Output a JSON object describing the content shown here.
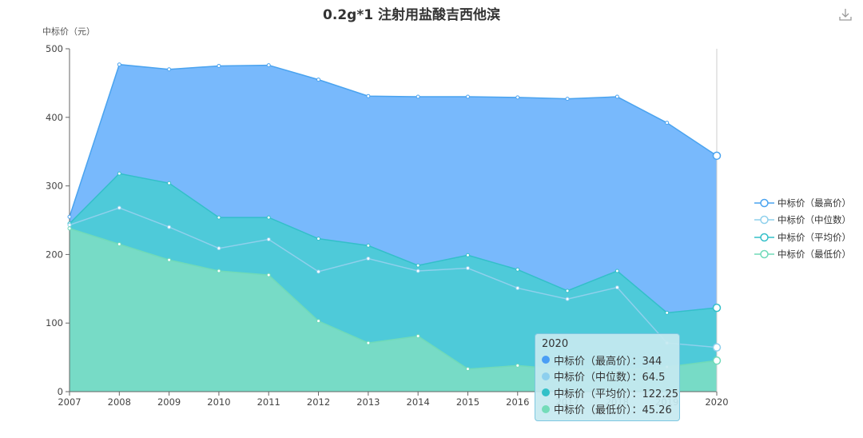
{
  "title": "0.2g*1 注射用盐酸吉西他滨",
  "icons": {
    "download": "download-icon"
  },
  "chart_data": {
    "type": "area",
    "title": "0.2g*1 注射用盐酸吉西他滨",
    "ylabel": "中标价（元）",
    "ylim": [
      0,
      500
    ],
    "yticks": [
      0,
      100,
      200,
      300,
      400,
      500
    ],
    "categories": [
      "2007",
      "2008",
      "2009",
      "2010",
      "2011",
      "2012",
      "2013",
      "2014",
      "2015",
      "2016",
      "2017",
      "2018",
      "2019",
      "2020"
    ],
    "series": [
      {
        "name": "中标价（最高价）",
        "color": "#4aa3ef",
        "fill": "#78b9fc",
        "values": [
          255,
          477,
          470,
          475,
          476,
          455,
          431,
          430,
          430,
          429,
          427,
          430,
          392,
          344
        ]
      },
      {
        "name": "中标价（中位数）",
        "color": "#8fd0ec",
        "fill": "#8fd0ec",
        "values": [
          243,
          268,
          240,
          209,
          222,
          175,
          194,
          176,
          180,
          151,
          135,
          152,
          71,
          64.5
        ]
      },
      {
        "name": "中标价（平均价）",
        "color": "#33bfc9",
        "fill": "#4ecad9",
        "values": [
          245,
          318,
          304,
          254,
          254,
          223,
          213,
          184,
          199,
          178,
          147,
          176,
          115,
          122.25
        ]
      },
      {
        "name": "中标价（最低价）",
        "color": "#70dab9",
        "fill": "#77dbc6",
        "values": [
          238,
          215,
          192,
          176,
          170,
          103,
          71,
          81,
          33,
          38,
          32,
          31,
          36,
          45.26
        ]
      }
    ],
    "legend_position": "right",
    "grid": false,
    "tooltip": {
      "category": "2020",
      "rows": [
        {
          "label": "中标价（最高价）：344",
          "color": "#4a9ef5"
        },
        {
          "label": "中标价（中位数）：64.5",
          "color": "#8dcfee"
        },
        {
          "label": "中标价（平均价）：122.25",
          "color": "#33c0c8"
        },
        {
          "label": "中标价（最低价）：45.26",
          "color": "#74dcb9"
        }
      ]
    }
  }
}
